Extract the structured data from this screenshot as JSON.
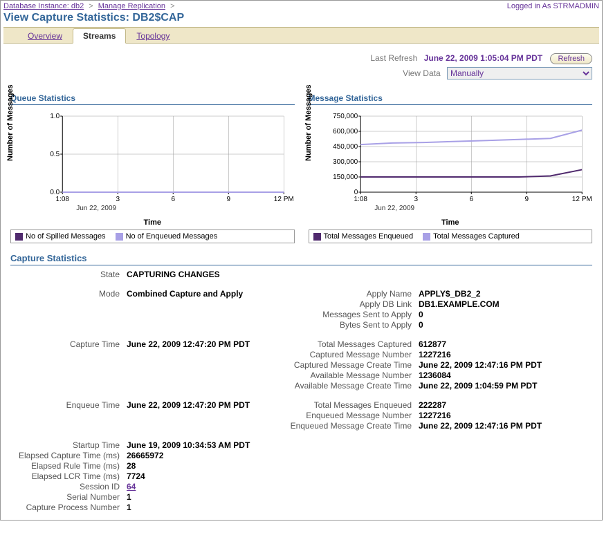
{
  "breadcrumb": {
    "items": [
      {
        "label": "Database Instance: db2"
      },
      {
        "label": "Manage Replication"
      }
    ]
  },
  "login": {
    "prefix": "Logged in As ",
    "user": "STRMADMIN"
  },
  "page_title": "View Capture Statistics: DB2$CAP",
  "tabs": {
    "overview": "Overview",
    "streams": "Streams",
    "topology": "Topology",
    "active": "streams"
  },
  "refresh": {
    "label": "Last Refresh",
    "value": "June 22, 2009 1:05:04 PM PDT",
    "button": "Refresh"
  },
  "viewdata": {
    "label": "View Data",
    "value": "Manually",
    "options": [
      "Manually"
    ]
  },
  "queue_chart": {
    "title": "Queue Statistics",
    "type": "line",
    "y_label": "Number of Messages",
    "x_label": "Time",
    "ylim": [
      0,
      1.0
    ],
    "yticks": [
      0.0,
      0.5,
      1.0
    ],
    "xticks": [
      "1:08",
      "3",
      "6",
      "9",
      "12 PM"
    ],
    "xsub": "Jun 22, 2009",
    "grid_color": "#9a9a9a",
    "series": [
      {
        "name": "No of Spilled Messages",
        "color": "#502a6e",
        "values": [
          0,
          0,
          0,
          0,
          0,
          0,
          0,
          0
        ]
      },
      {
        "name": "No of Enqueued Messages",
        "color": "#a8a0e6",
        "values": [
          0,
          0,
          0,
          0,
          0,
          0,
          0,
          0
        ]
      }
    ]
  },
  "message_chart": {
    "title": "Message Statistics",
    "type": "line",
    "y_label": "Number of Messages",
    "x_label": "Time",
    "ylim": [
      0,
      750000
    ],
    "yticks": [
      0,
      150000,
      300000,
      450000,
      600000,
      750000
    ],
    "ytick_labels": [
      "0",
      "150,000",
      "300,000",
      "450,000",
      "600,000",
      "750,000"
    ],
    "xticks": [
      "1:08",
      "3",
      "6",
      "9",
      "12 PM"
    ],
    "xsub": "Jun 22, 2009",
    "grid_color": "#9a9a9a",
    "series": [
      {
        "name": "Total Messages Enqueued",
        "color": "#502a6e",
        "values": [
          150000,
          150000,
          150000,
          150000,
          150000,
          150000,
          160000,
          222000
        ]
      },
      {
        "name": "Total Messages Captured",
        "color": "#a8a0e6",
        "values": [
          470000,
          485000,
          490000,
          500000,
          510000,
          520000,
          530000,
          612000
        ]
      }
    ]
  },
  "statsTitle": "Capture Statistics",
  "stats": {
    "state": {
      "label": "State",
      "value": "CAPTURING CHANGES"
    },
    "mode": {
      "label": "Mode",
      "value": "Combined Capture and Apply"
    },
    "apply_name": {
      "label": "Apply Name",
      "value": "APPLY$_DB2_2"
    },
    "apply_db_link": {
      "label": "Apply DB Link",
      "value": "DB1.EXAMPLE.COM"
    },
    "msgs_sent": {
      "label": "Messages Sent to Apply",
      "value": "0"
    },
    "bytes_sent": {
      "label": "Bytes Sent to Apply",
      "value": "0"
    },
    "capture_time": {
      "label": "Capture Time",
      "value": "June 22, 2009 12:47:20 PM PDT"
    },
    "total_captured": {
      "label": "Total Messages Captured",
      "value": "612877"
    },
    "captured_msg_num": {
      "label": "Captured Message Number",
      "value": "1227216"
    },
    "captured_create": {
      "label": "Captured Message Create Time",
      "value": "June 22, 2009 12:47:16 PM PDT"
    },
    "avail_msg_num": {
      "label": "Available Message Number",
      "value": "1236084"
    },
    "avail_create": {
      "label": "Available Message Create Time",
      "value": "June 22, 2009 1:04:59 PM PDT"
    },
    "enqueue_time": {
      "label": "Enqueue Time",
      "value": "June 22, 2009 12:47:20 PM PDT"
    },
    "total_enqueued": {
      "label": "Total Messages Enqueued",
      "value": "222287"
    },
    "enqueued_msg_num": {
      "label": "Enqueued Message Number",
      "value": "1227216"
    },
    "enqueued_create": {
      "label": "Enqueued Message Create Time",
      "value": "June 22, 2009 12:47:16 PM PDT"
    },
    "startup_time": {
      "label": "Startup Time",
      "value": "June 19, 2009 10:34:53 AM PDT"
    },
    "elapsed_capture": {
      "label": "Elapsed Capture Time (ms)",
      "value": "26665972"
    },
    "elapsed_rule": {
      "label": "Elapsed Rule Time (ms)",
      "value": "28"
    },
    "elapsed_lcr": {
      "label": "Elapsed LCR Time (ms)",
      "value": "7724"
    },
    "session_id": {
      "label": "Session ID",
      "value": "64"
    },
    "serial_number": {
      "label": "Serial Number",
      "value": "1"
    },
    "capture_process": {
      "label": "Capture Process Number",
      "value": "1"
    }
  }
}
